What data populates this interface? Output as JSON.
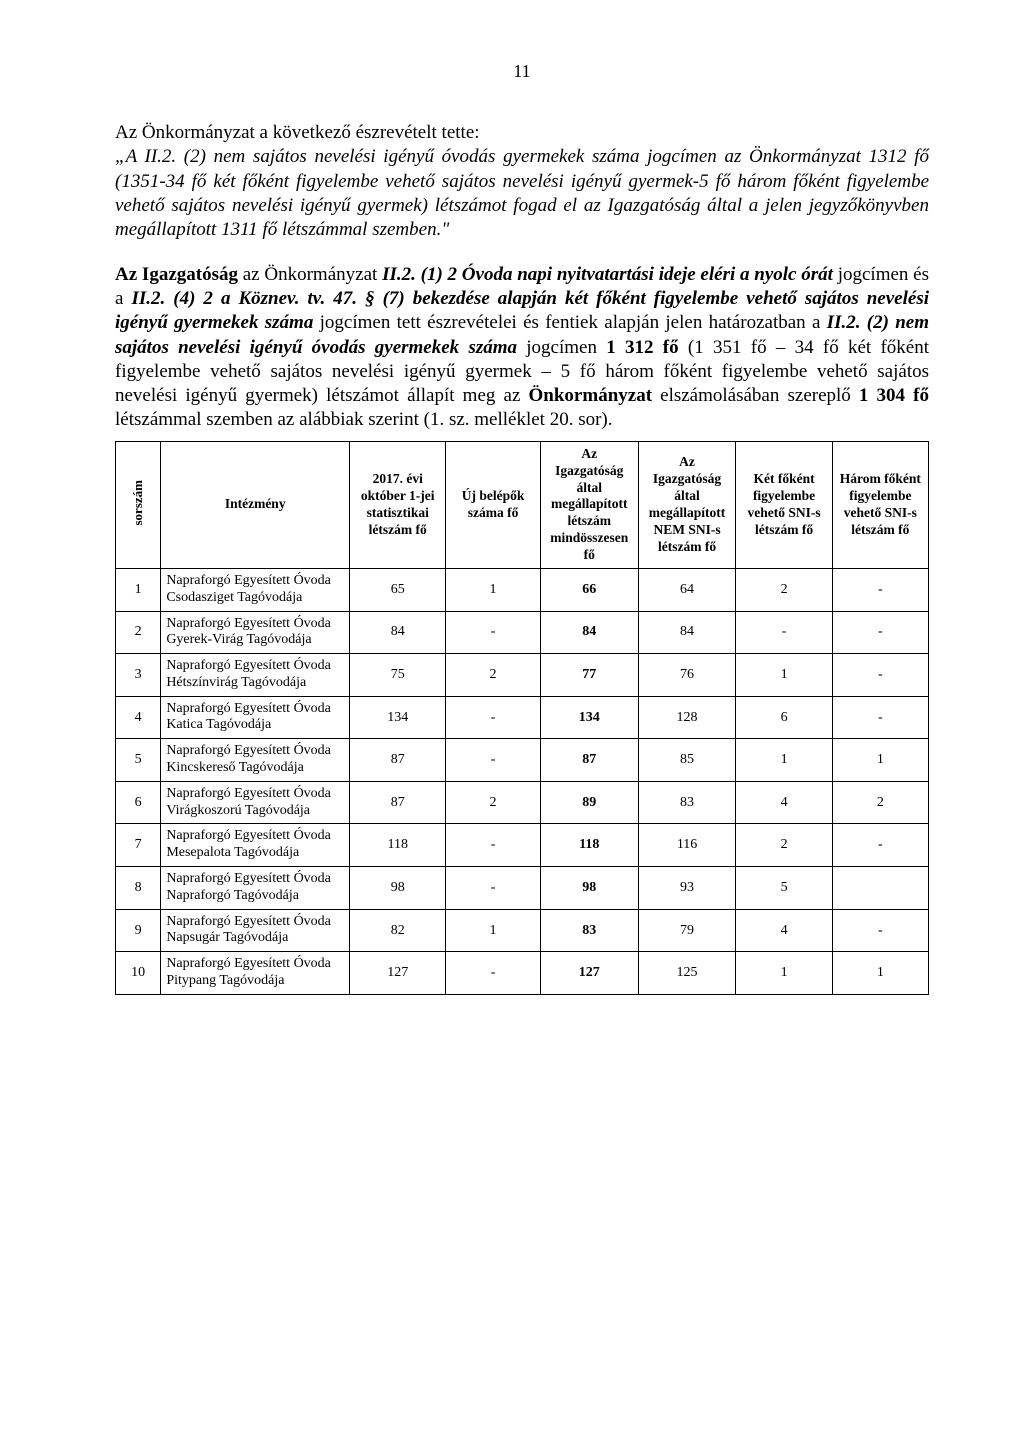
{
  "page_number": "11",
  "intro_line": "Az Önkormányzat a következő észrevételt tette:",
  "quote_prefix": "„A II.2. (2) nem sajátos nevelési igényű óvodás gyermekek száma jogcímen az Önkormányzat 1312 fő (1351-34 fő két főként figyelembe vehető sajátos nevelési igényű gyermek-5 fő három főként figyelembe vehető sajátos nevelési igényű gyermek) létszámot fogad el az Igazgatóság által a jelen jegyzőkönyvben megállapított 1311 fő létszámmal szemben.\"",
  "para2": {
    "s1": "Az Igazgatóság ",
    "s2": "az Önkormányzat ",
    "s3": "II.2. (1) 2 Óvoda napi nyitvatartási ideje eléri a nyolc órát",
    "s4": " jogcímen és a ",
    "s5": "II.2. (4) 2 a Köznev. tv. 47. § (7) bekezdése alapján két főként figyelembe vehető sajátos nevelési igényű gyermekek száma",
    "s6": " jogcímen tett észrevételei és fentiek alapján jelen határozatban a ",
    "s7": "II.2. (2) nem sajátos nevelési igényű óvodás gyermekek száma",
    "s8": " jogcímen ",
    "s9": "1 312 fő",
    "s10": " (1 351 fő – 34 fő két főként figyelembe vehető sajátos nevelési igényű gyermek – 5 fő három főként figyelembe vehető sajátos nevelési igényű gyermek) létszámot állapít meg az ",
    "s11": "Önkormányzat",
    "s12": " elszámolásában szereplő ",
    "s13": "1 304 fő",
    "s14": " létszámmal szemben az alábbiak szerint (1. sz. melléklet 20. sor)."
  },
  "table": {
    "headers": {
      "h0": "sorszám",
      "h1": "Intézmény",
      "h2": "2017. évi október 1-jei statisztikai létszám fő",
      "h3": "Új belépők száma fő",
      "h4": "Az Igazgatóság által megállapított létszám mindösszesen fő",
      "h5": "Az Igazgatóság által megállapított NEM SNI-s létszám fő",
      "h6": "Két főként figyelembe vehető SNI-s létszám fő",
      "h7": "Három főként figyelembe vehető SNI-s létszám fő"
    },
    "rows": [
      {
        "n": "1",
        "name": "Napraforgó Egyesített Óvoda Csodasziget Tagóvodája",
        "c1": "65",
        "c2": "1",
        "c3": "66",
        "c4": "64",
        "c5": "2",
        "c6": "-"
      },
      {
        "n": "2",
        "name": "Napraforgó Egyesített Óvoda Gyerek-Virág Tagóvodája",
        "c1": "84",
        "c2": "-",
        "c3": "84",
        "c4": "84",
        "c5": "-",
        "c6": "-"
      },
      {
        "n": "3",
        "name": "Napraforgó Egyesített Óvoda Hétszínvirág Tagóvodája",
        "c1": "75",
        "c2": "2",
        "c3": "77",
        "c4": "76",
        "c5": "1",
        "c6": "-"
      },
      {
        "n": "4",
        "name": "Napraforgó Egyesített Óvoda Katica Tagóvodája",
        "c1": "134",
        "c2": "-",
        "c3": "134",
        "c4": "128",
        "c5": "6",
        "c6": "-"
      },
      {
        "n": "5",
        "name": "Napraforgó Egyesített Óvoda Kincskereső Tagóvodája",
        "c1": "87",
        "c2": "-",
        "c3": "87",
        "c4": "85",
        "c5": "1",
        "c6": "1"
      },
      {
        "n": "6",
        "name": "Napraforgó Egyesített Óvoda Virágkoszorú Tagóvodája",
        "c1": "87",
        "c2": "2",
        "c3": "89",
        "c4": "83",
        "c5": "4",
        "c6": "2"
      },
      {
        "n": "7",
        "name": "Napraforgó Egyesített Óvoda Mesepalota Tagóvodája",
        "c1": "118",
        "c2": "-",
        "c3": "118",
        "c4": "116",
        "c5": "2",
        "c6": "-"
      },
      {
        "n": "8",
        "name": "Napraforgó Egyesített Óvoda Napraforgó Tagóvodája",
        "c1": "98",
        "c2": "-",
        "c3": "98",
        "c4": "93",
        "c5": "5",
        "c6": ""
      },
      {
        "n": "9",
        "name": "Napraforgó Egyesített Óvoda Napsugár Tagóvodája",
        "c1": "82",
        "c2": "1",
        "c3": "83",
        "c4": "79",
        "c5": "4",
        "c6": "-"
      },
      {
        "n": "10",
        "name": "Napraforgó Egyesített Óvoda Pitypang Tagóvodája",
        "c1": "127",
        "c2": "-",
        "c3": "127",
        "c4": "125",
        "c5": "1",
        "c6": "1"
      }
    ]
  }
}
